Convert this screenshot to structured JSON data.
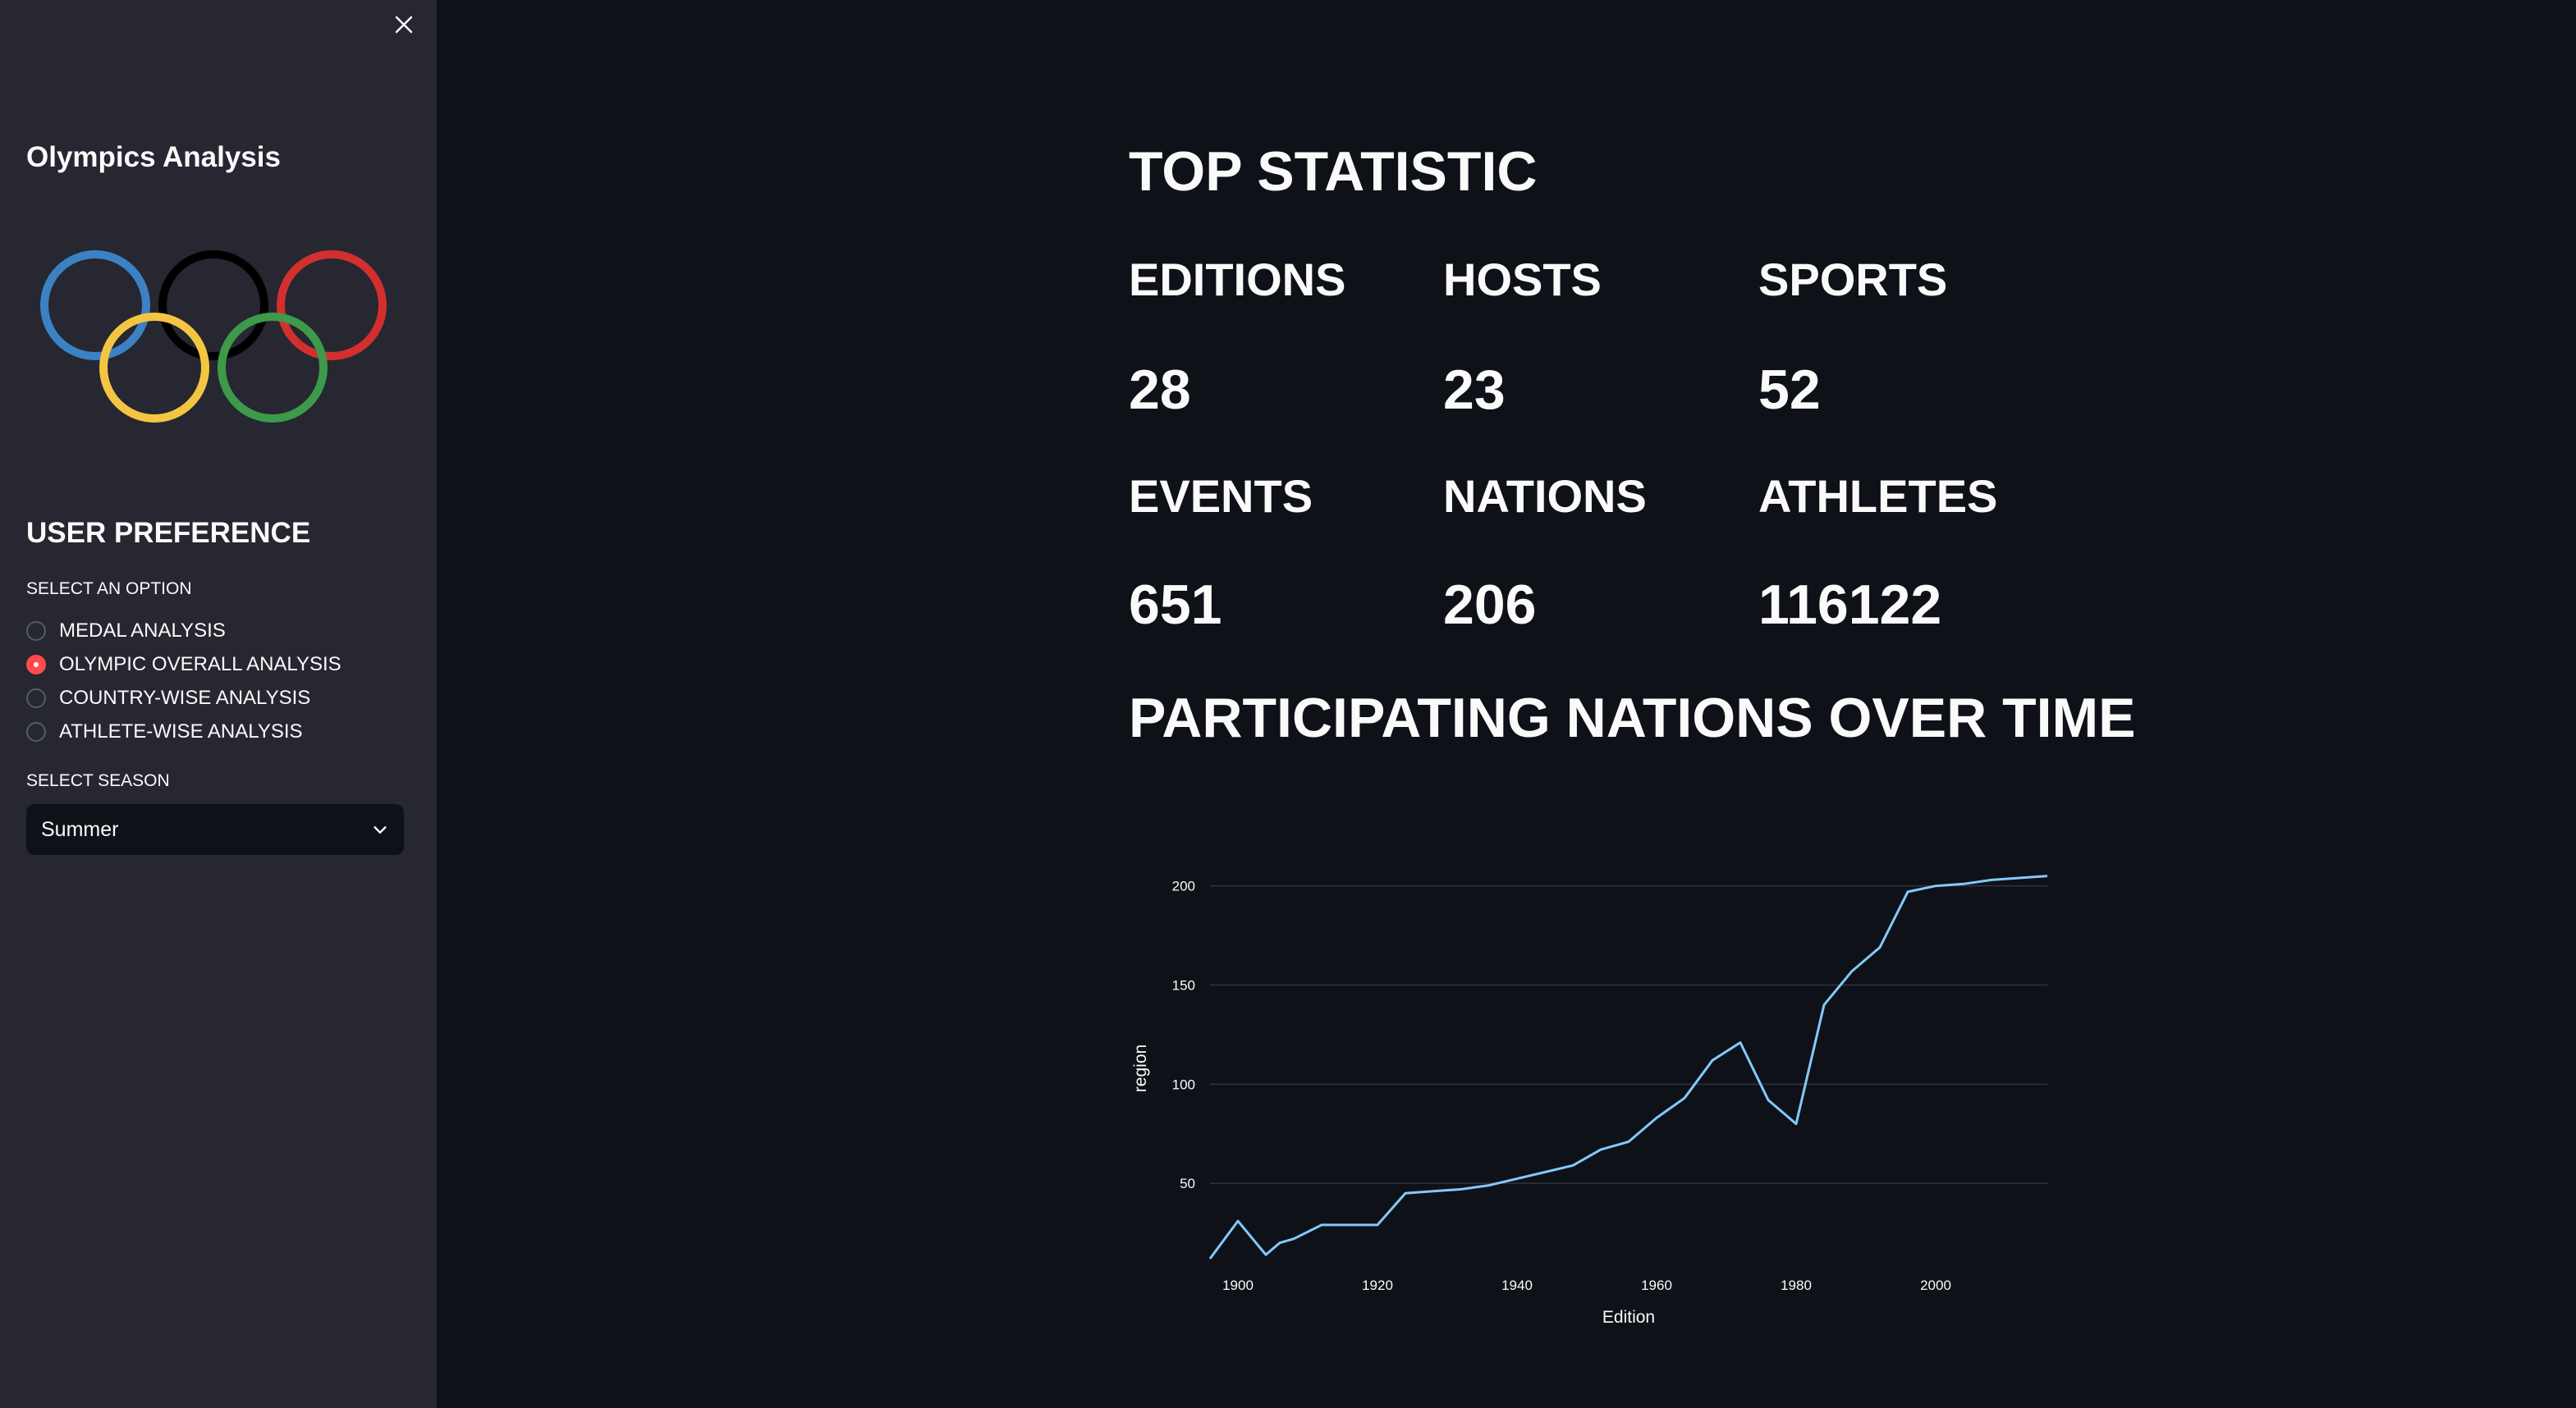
{
  "sidebar": {
    "title": "Olympics Analysis",
    "logo": "olympic-rings",
    "preference_title": "USER PREFERENCE",
    "option_label": "SELECT AN OPTION",
    "options": [
      {
        "label": "MEDAL ANALYSIS",
        "selected": false
      },
      {
        "label": "OLYMPIC OVERALL ANALYSIS",
        "selected": true
      },
      {
        "label": "COUNTRY-WISE ANALYSIS",
        "selected": false
      },
      {
        "label": "ATHLETE-WISE ANALYSIS",
        "selected": false
      }
    ],
    "season_label": "SELECT SEASON",
    "season_value": "Summer"
  },
  "main": {
    "title": "TOP STATISTIC",
    "stats": [
      {
        "label": "EDITIONS",
        "value": "28"
      },
      {
        "label": "HOSTS",
        "value": "23"
      },
      {
        "label": "SPORTS",
        "value": "52"
      },
      {
        "label": "EVENTS",
        "value": "651"
      },
      {
        "label": "NATIONS",
        "value": "206"
      },
      {
        "label": "ATHLETES",
        "value": "116122"
      }
    ],
    "chart_title": "PARTICIPATING NATIONS OVER TIME"
  },
  "colors": {
    "background": "#0e1117",
    "sidebar": "#262730",
    "accent": "#ff4b4b",
    "line": "#83c9ff",
    "ring_blue": "#3b82c4",
    "ring_black": "#000000",
    "ring_red": "#d32f2f",
    "ring_yellow": "#f4c542",
    "ring_green": "#3d9a4a"
  },
  "icons": {
    "close": "close-icon",
    "dropdown": "chevron-down-icon"
  },
  "chart_data": {
    "type": "line",
    "xlabel": "Edition",
    "ylabel": "region",
    "x_ticks": [
      1900,
      1920,
      1940,
      1960,
      1980,
      2000
    ],
    "y_ticks": [
      50,
      100,
      150,
      200
    ],
    "xlim": [
      1896,
      2016
    ],
    "ylim": [
      12,
      204
    ],
    "grid": true,
    "x": [
      1896,
      1900,
      1904,
      1906,
      1908,
      1912,
      1920,
      1924,
      1928,
      1932,
      1936,
      1948,
      1952,
      1956,
      1960,
      1964,
      1968,
      1972,
      1976,
      1980,
      1984,
      1988,
      1992,
      1996,
      2000,
      2004,
      2008,
      2012,
      2016
    ],
    "y": [
      12,
      31,
      14,
      20,
      22,
      29,
      29,
      45,
      46,
      47,
      49,
      59,
      67,
      71,
      83,
      93,
      112,
      121,
      92,
      80,
      140,
      157,
      169,
      197,
      200,
      201,
      203,
      204,
      205
    ]
  }
}
